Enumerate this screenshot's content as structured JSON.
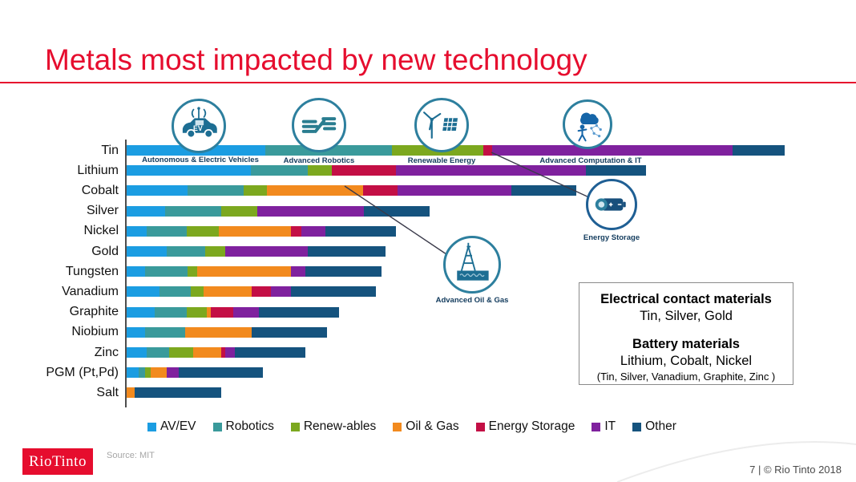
{
  "title": "Metals most impacted by new technology",
  "icons": [
    {
      "name": "autonomous-electric-vehicles",
      "label": "Autonomous & Electric Vehicles"
    },
    {
      "name": "advanced-robotics",
      "label": "Advanced Robotics"
    },
    {
      "name": "renewable-energy",
      "label": "Renewable Energy"
    },
    {
      "name": "advanced-computation-it",
      "label": "Advanced Computation & IT"
    },
    {
      "name": "energy-storage",
      "label": "Energy Storage"
    },
    {
      "name": "advanced-oil-gas",
      "label": "Advanced Oil & Gas"
    }
  ],
  "info_box": {
    "heading1": "Electrical contact materials",
    "line1": "Tin, Silver, Gold",
    "heading2": "Battery materials",
    "line2": "Lithium, Cobalt, Nickel",
    "line3": "(Tin, Silver, Vanadium, Graphite, Zinc )"
  },
  "footer": {
    "logo_text": "RioTinto",
    "source": "Source: MIT",
    "page_info": "7 | © Rio Tinto 2018"
  },
  "chart_data": {
    "type": "bar",
    "orientation": "horizontal",
    "stacked": true,
    "grid": false,
    "legend_position": "bottom",
    "value_unit": "relative impact (unlabeled axis, pixel-estimated units)",
    "categories": [
      "Tin",
      "Lithium",
      "Cobalt",
      "Silver",
      "Nickel",
      "Gold",
      "Tungsten",
      "Vanadium",
      "Graphite",
      "Niobium",
      "Zinc",
      "PGM (Pt,Pd)",
      "Salt"
    ],
    "series": [
      {
        "name": "AV/EV",
        "color": "#1b9de2",
        "values": [
          173,
          155,
          76,
          48,
          25,
          50,
          23,
          41,
          35,
          23,
          25,
          15,
          0
        ]
      },
      {
        "name": "Robotics",
        "color": "#3a9a9b",
        "values": [
          158,
          71,
          70,
          70,
          50,
          48,
          53,
          39,
          40,
          50,
          28,
          8,
          0
        ]
      },
      {
        "name": "Renew-ables",
        "color": "#7ca81f",
        "values": [
          114,
          30,
          29,
          45,
          40,
          25,
          12,
          16,
          25,
          0,
          30,
          7,
          0
        ]
      },
      {
        "name": "Oil & Gas",
        "color": "#f28a1e",
        "values": [
          0,
          0,
          120,
          0,
          90,
          0,
          117,
          60,
          5,
          83,
          35,
          20,
          10
        ]
      },
      {
        "name": "Energy Storage",
        "color": "#c30f45",
        "values": [
          11,
          80,
          43,
          0,
          13,
          0,
          0,
          24,
          28,
          0,
          5,
          0,
          0
        ]
      },
      {
        "name": "IT",
        "color": "#7f219e",
        "values": [
          300,
          237,
          142,
          133,
          30,
          103,
          18,
          25,
          32,
          0,
          12,
          15,
          0
        ]
      },
      {
        "name": "Other",
        "color": "#15537e",
        "values": [
          65,
          75,
          81,
          82,
          88,
          97,
          95,
          106,
          100,
          94,
          88,
          105,
          108
        ]
      }
    ],
    "annotations": [
      {
        "from": "Tin Energy-Storage segment",
        "to": "energy-storage icon"
      },
      {
        "from": "Cobalt Oil-&-Gas segment",
        "to": "advanced-oil-gas icon"
      }
    ]
  }
}
